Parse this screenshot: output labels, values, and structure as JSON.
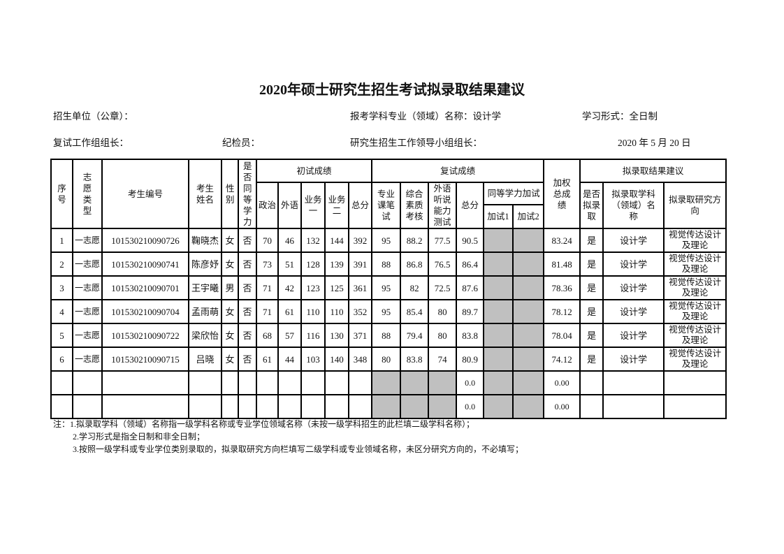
{
  "title": "2020年硕士研究生招生考试拟录取结果建议",
  "info": {
    "unit_label": "招生单位（公章）：",
    "major_label": "报考学科专业（领域）名称：设计学",
    "study_form_label": "学习形式：全日制",
    "retest_leader_label": "复试工作组组长：",
    "inspector_label": "纪检员：",
    "admission_leader_label": "研究生招生工作领导小组组长：",
    "date": "2020 年 5 月 20 日"
  },
  "headers": {
    "seq": "序号",
    "type": "志愿类型",
    "id": "考生编号",
    "name": "考生姓名",
    "gender": "性别",
    "equiv": "是否同等学力",
    "prelim": "初试成绩",
    "politics": "政治",
    "foreign": "外语",
    "subj1": "业务一",
    "subj2": "业务二",
    "prelim_total": "总分",
    "retest": "复试成绩",
    "written": "专业课笔试",
    "quality": "综合素质考核",
    "listening": "外语听说能力测试",
    "retest_total": "总分",
    "equiv_extra": "同等学力加试",
    "extra1": "加试1",
    "extra2": "加试2",
    "weighted": "加权总成绩",
    "result": "拟录取结果建议",
    "admit": "是否拟录取",
    "subject": "拟录取学科（领域）名称",
    "direction": "拟录取研究方向"
  },
  "rows": [
    {
      "seq": "1",
      "type": "一志愿",
      "id": "101530210090726",
      "name": "鞠晓杰",
      "gender": "女",
      "equiv": "否",
      "politics": "70",
      "foreign": "46",
      "subj1": "132",
      "subj2": "144",
      "prelim_total": "392",
      "written": "95",
      "quality": "88.2",
      "listening": "77.5",
      "retest_total": "90.5",
      "extra1": "",
      "extra2": "",
      "weighted": "83.24",
      "admit": "是",
      "subject": "设计学",
      "direction": "视觉传达设计及理论"
    },
    {
      "seq": "2",
      "type": "一志愿",
      "id": "101530210090741",
      "name": "陈彦妤",
      "gender": "女",
      "equiv": "否",
      "politics": "73",
      "foreign": "51",
      "subj1": "128",
      "subj2": "139",
      "prelim_total": "391",
      "written": "88",
      "quality": "86.8",
      "listening": "76.5",
      "retest_total": "86.4",
      "extra1": "",
      "extra2": "",
      "weighted": "81.48",
      "admit": "是",
      "subject": "设计学",
      "direction": "视觉传达设计及理论"
    },
    {
      "seq": "3",
      "type": "一志愿",
      "id": "101530210090701",
      "name": "王宇曦",
      "gender": "男",
      "equiv": "否",
      "politics": "71",
      "foreign": "42",
      "subj1": "123",
      "subj2": "125",
      "prelim_total": "361",
      "written": "95",
      "quality": "82",
      "listening": "72.5",
      "retest_total": "87.6",
      "extra1": "",
      "extra2": "",
      "weighted": "78.36",
      "admit": "是",
      "subject": "设计学",
      "direction": "视觉传达设计及理论"
    },
    {
      "seq": "4",
      "type": "一志愿",
      "id": "101530210090704",
      "name": "孟雨萌",
      "gender": "女",
      "equiv": "否",
      "politics": "71",
      "foreign": "61",
      "subj1": "110",
      "subj2": "110",
      "prelim_total": "352",
      "written": "95",
      "quality": "85.4",
      "listening": "80",
      "retest_total": "89.7",
      "extra1": "",
      "extra2": "",
      "weighted": "78.12",
      "admit": "是",
      "subject": "设计学",
      "direction": "视觉传达设计及理论"
    },
    {
      "seq": "5",
      "type": "一志愿",
      "id": "101530210090722",
      "name": "梁欣怡",
      "gender": "女",
      "equiv": "否",
      "politics": "68",
      "foreign": "57",
      "subj1": "116",
      "subj2": "130",
      "prelim_total": "371",
      "written": "88",
      "quality": "79.4",
      "listening": "80",
      "retest_total": "83.8",
      "extra1": "",
      "extra2": "",
      "weighted": "78.04",
      "admit": "是",
      "subject": "设计学",
      "direction": "视觉传达设计及理论"
    },
    {
      "seq": "6",
      "type": "一志愿",
      "id": "101530210090715",
      "name": "吕晓",
      "gender": "女",
      "equiv": "否",
      "politics": "61",
      "foreign": "44",
      "subj1": "103",
      "subj2": "140",
      "prelim_total": "348",
      "written": "80",
      "quality": "83.8",
      "listening": "74",
      "retest_total": "80.9",
      "extra1": "",
      "extra2": "",
      "weighted": "74.12",
      "admit": "是",
      "subject": "设计学",
      "direction": "视觉传达设计及理论"
    },
    {
      "seq": "",
      "type": "",
      "id": "",
      "name": "",
      "gender": "",
      "equiv": "",
      "politics": "",
      "foreign": "",
      "subj1": "",
      "subj2": "",
      "prelim_total": "",
      "written": "",
      "quality": "",
      "listening": "",
      "retest_total": "0.0",
      "extra1": "",
      "extra2": "",
      "weighted": "0.00",
      "admit": "",
      "subject": "",
      "direction": "",
      "blank": true
    },
    {
      "seq": "",
      "type": "",
      "id": "",
      "name": "",
      "gender": "",
      "equiv": "",
      "politics": "",
      "foreign": "",
      "subj1": "",
      "subj2": "",
      "prelim_total": "",
      "written": "",
      "quality": "",
      "listening": "",
      "retest_total": "0.0",
      "extra1": "",
      "extra2": "",
      "weighted": "0.00",
      "admit": "",
      "subject": "",
      "direction": "",
      "blank": true
    }
  ],
  "colors": {
    "shaded_cell": "#c0c0c0"
  },
  "notes": [
    "注：1.拟录取学科（领域）名称指一级学科名称或专业学位领域名称（未按一级学科招生的此栏填二级学科名称）；",
    "2.学习形式是指全日制和非全日制；",
    "3.按照一级学科或专业学位类别录取的，拟录取研究方向栏填写二级学科或专业领域名称，未区分研究方向的，不必填写；"
  ]
}
